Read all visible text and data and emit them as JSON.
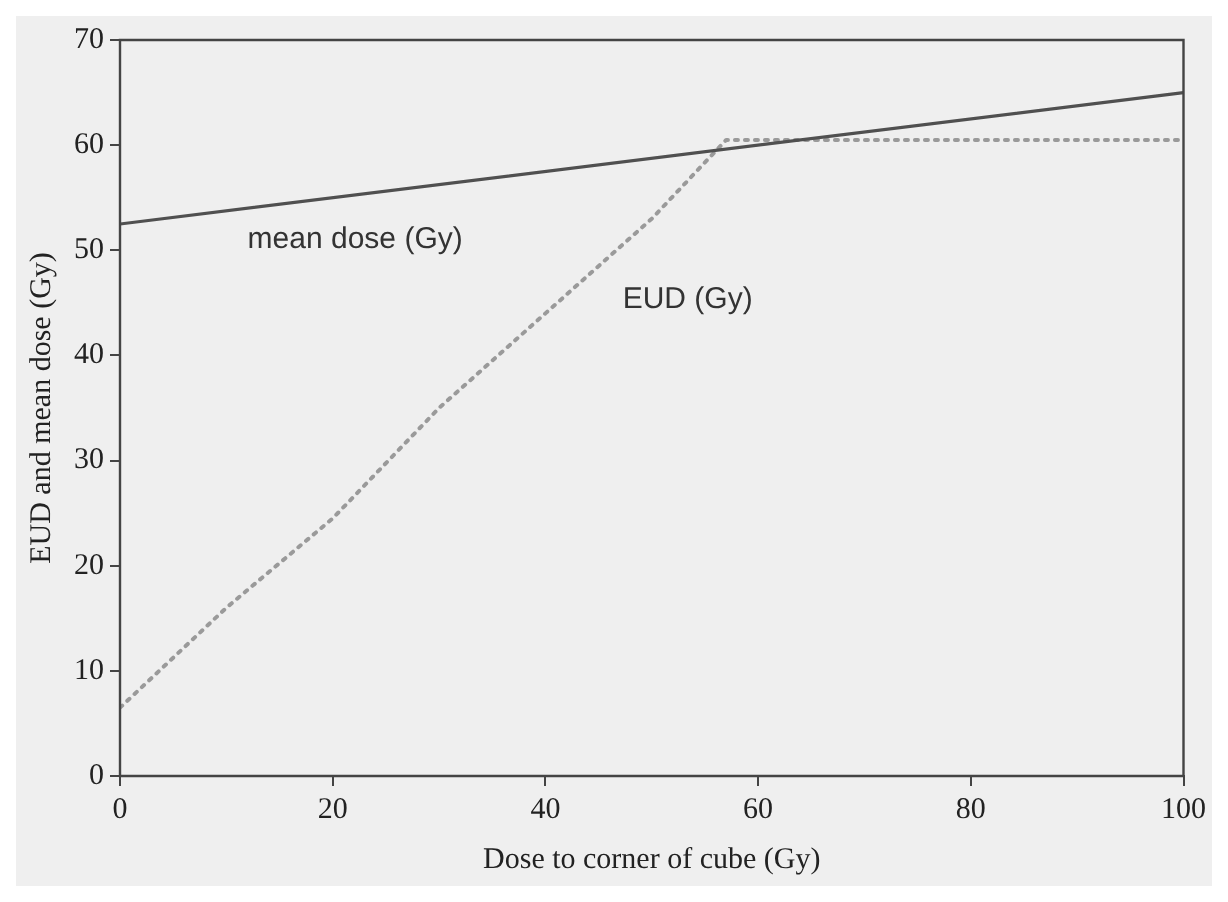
{
  "chart_data": {
    "type": "line",
    "xlabel": "Dose to corner of cube (Gy)",
    "ylabel": "EUD and mean dose (Gy)",
    "xlim": [
      0,
      100
    ],
    "xticks": [
      0,
      20,
      40,
      60,
      80,
      100
    ],
    "ylim": [
      0,
      70
    ],
    "yticks": [
      0,
      10,
      20,
      30,
      40,
      50,
      60,
      70
    ],
    "grid": false,
    "legend": false,
    "marker": "none",
    "series": [
      {
        "name": "mean dose (Gy)",
        "color": "#505050",
        "line_style": "solid",
        "x": [
          0,
          100
        ],
        "values": [
          52.5,
          65
        ]
      },
      {
        "name": "EUD (Gy)",
        "color": "#9a9a9a",
        "line_style": "dotted",
        "x": [
          0,
          10,
          20,
          30,
          40,
          50,
          57,
          100
        ],
        "values": [
          6.5,
          16,
          24.5,
          35,
          44,
          53,
          60.5,
          60.5
        ]
      }
    ]
  }
}
